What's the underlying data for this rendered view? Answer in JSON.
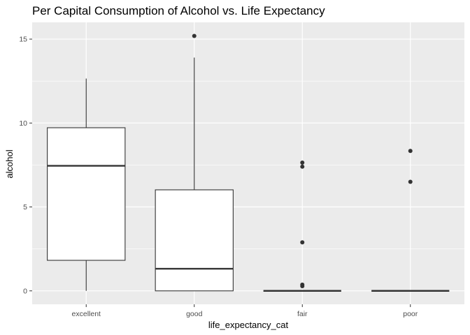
{
  "chart_data": {
    "type": "boxplot",
    "title": "Per Capital Consumption of Alcohol vs. Life Expectancy",
    "xlabel": "life_expectancy_cat",
    "ylabel": "alcohol",
    "categories": [
      "excellent",
      "good",
      "fair",
      "poor"
    ],
    "ylim": [
      -0.8,
      16.0
    ],
    "yticks": [
      0,
      5,
      10,
      15
    ],
    "grid": true,
    "boxes": [
      {
        "category": "excellent",
        "whisker_low": 0.0,
        "q1": 1.82,
        "median": 7.45,
        "q3": 9.72,
        "whisker_high": 12.65,
        "outliers": []
      },
      {
        "category": "good",
        "whisker_low": 0.0,
        "q1": 0.0,
        "median": 1.32,
        "q3": 6.02,
        "whisker_high": 13.9,
        "outliers": [
          15.19
        ]
      },
      {
        "category": "fair",
        "whisker_low": 0.0,
        "q1": 0.0,
        "median": 0.0,
        "q3": 0.0,
        "whisker_high": 0.0,
        "outliers": [
          7.64,
          7.4,
          2.89,
          0.37,
          0.28
        ]
      },
      {
        "category": "poor",
        "whisker_low": 0.0,
        "q1": 0.0,
        "median": 0.0,
        "q3": 0.0,
        "whisker_high": 0.0,
        "outliers": [
          8.34,
          6.5
        ]
      }
    ],
    "colors": {
      "panel": "#ebebeb",
      "grid_major": "#ffffff",
      "box_fill": "#ffffff",
      "line": "#333333"
    }
  }
}
